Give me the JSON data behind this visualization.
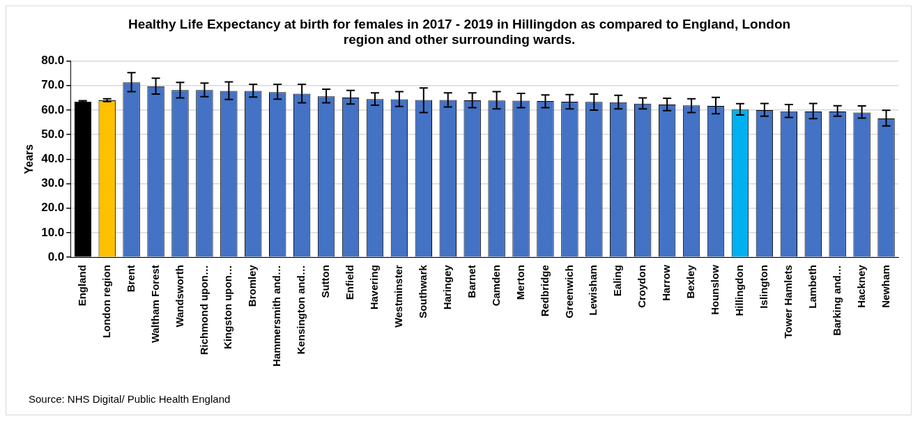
{
  "chart_data": {
    "type": "bar",
    "title": "Healthy Life Expectancy at birth for females in 2017 - 2019 in Hillingdon as compared to England, London region and other surrounding wards.",
    "ylabel": "Years",
    "categories": [
      "England",
      "London region",
      "Brent",
      "Waltham Forest",
      "Wandsworth",
      "Richmond upon…",
      "Kingston upon…",
      "Bromley",
      "Hammersmith and…",
      "Kensington and…",
      "Sutton",
      "Enfield",
      "Havering",
      "Westminster",
      "Southwark",
      "Haringey",
      "Barnet",
      "Camden",
      "Merton",
      "Redbridge",
      "Greenwich",
      "Lewisham",
      "Ealing",
      "Croydon",
      "Harrow",
      "Bexley",
      "Hounslow",
      "Hillingdon",
      "Islington",
      "Tower Hamlets",
      "Lambeth",
      "Barking and…",
      "Hackney",
      "Newham"
    ],
    "values": [
      63.5,
      64.0,
      71.3,
      69.7,
      68.2,
      68.2,
      67.8,
      67.8,
      67.3,
      66.7,
      65.6,
      65.1,
      64.5,
      64.4,
      64.1,
      64.1,
      64.0,
      63.9,
      63.8,
      63.7,
      63.4,
      63.3,
      63.2,
      62.6,
      62.3,
      61.9,
      61.7,
      60.2,
      60.0,
      59.5,
      59.4,
      59.4,
      59.0,
      56.6
    ],
    "colors": [
      "#000000",
      "#ffc000",
      "#4472c4",
      "#4472c4",
      "#4472c4",
      "#4472c4",
      "#4472c4",
      "#4472c4",
      "#4472c4",
      "#4472c4",
      "#4472c4",
      "#4472c4",
      "#4472c4",
      "#4472c4",
      "#4472c4",
      "#4472c4",
      "#4472c4",
      "#4472c4",
      "#4472c4",
      "#4472c4",
      "#4472c4",
      "#4472c4",
      "#4472c4",
      "#4472c4",
      "#4472c4",
      "#4472c4",
      "#4472c4",
      "#00b0f0",
      "#4472c4",
      "#4472c4",
      "#4472c4",
      "#4472c4",
      "#4472c4",
      "#4472c4"
    ],
    "errors": [
      [
        63.2,
        63.8
      ],
      [
        63.5,
        64.6
      ],
      [
        67.5,
        75.3
      ],
      [
        66.5,
        73.0
      ],
      [
        65.0,
        71.3
      ],
      [
        65.5,
        71.0
      ],
      [
        64.3,
        71.5
      ],
      [
        65.3,
        70.5
      ],
      [
        64.5,
        70.5
      ],
      [
        63.0,
        70.5
      ],
      [
        63.0,
        68.5
      ],
      [
        62.5,
        68.0
      ],
      [
        62.0,
        67.0
      ],
      [
        61.5,
        67.5
      ],
      [
        59.0,
        69.0
      ],
      [
        61.3,
        67.0
      ],
      [
        61.0,
        67.0
      ],
      [
        60.5,
        67.5
      ],
      [
        61.0,
        66.8
      ],
      [
        61.0,
        66.2
      ],
      [
        60.5,
        66.3
      ],
      [
        60.0,
        66.5
      ],
      [
        60.5,
        66.0
      ],
      [
        60.5,
        65.0
      ],
      [
        59.8,
        64.8
      ],
      [
        59.0,
        64.6
      ],
      [
        58.5,
        65.2
      ],
      [
        58.0,
        62.6
      ],
      [
        57.5,
        62.7
      ],
      [
        57.0,
        62.3
      ],
      [
        56.5,
        62.7
      ],
      [
        57.5,
        61.8
      ],
      [
        56.7,
        61.7
      ],
      [
        53.5,
        59.9
      ]
    ],
    "ylim": [
      0,
      80
    ],
    "yticks": [
      {
        "value": 0,
        "label": "0.0"
      },
      {
        "value": 10,
        "label": "10.0"
      },
      {
        "value": 20,
        "label": "20.0"
      },
      {
        "value": 30,
        "label": "30.0"
      },
      {
        "value": 40,
        "label": "40.0"
      },
      {
        "value": 50,
        "label": "50.0"
      },
      {
        "value": 60,
        "label": "60.0"
      },
      {
        "value": 70,
        "label": "70.0"
      },
      {
        "value": 80,
        "label": "80.0"
      }
    ],
    "grid": "y",
    "legend": false,
    "annotations": [
      "Source: NHS Digital/  Public Health England"
    ]
  }
}
